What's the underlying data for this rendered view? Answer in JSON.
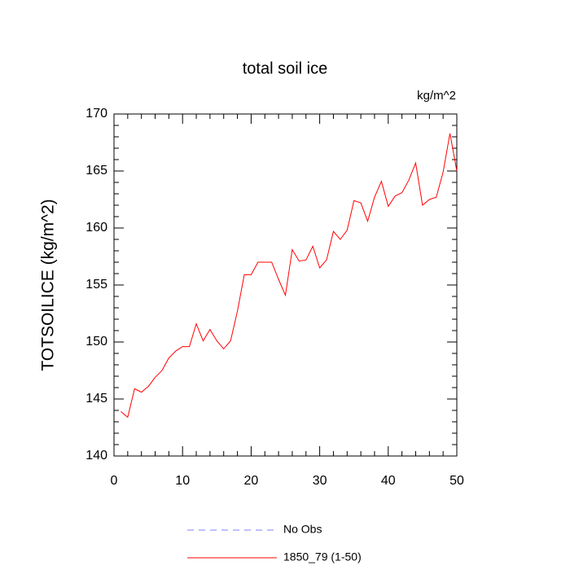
{
  "chart_data": {
    "type": "line",
    "title": "total soil ice",
    "units": "kg/m^2",
    "y_label": "TOTSOILICE  (kg/m^2)",
    "x": [
      1,
      2,
      3,
      4,
      5,
      6,
      7,
      8,
      9,
      10,
      11,
      12,
      13,
      14,
      15,
      16,
      17,
      18,
      19,
      20,
      21,
      22,
      23,
      24,
      25,
      26,
      27,
      28,
      29,
      30,
      31,
      32,
      33,
      34,
      35,
      36,
      37,
      38,
      39,
      40,
      41,
      42,
      43,
      44,
      45,
      46,
      47,
      48,
      49,
      50
    ],
    "series": [
      {
        "name": "No Obs",
        "color": "#8080ff",
        "dashed": true,
        "values": [
          null,
          null,
          null,
          null,
          null,
          null,
          null,
          null,
          null,
          null,
          null,
          null,
          null,
          null,
          null,
          null,
          null,
          null,
          null,
          null,
          null,
          null,
          null,
          null,
          null,
          null,
          null,
          null,
          null,
          null,
          null,
          null,
          null,
          null,
          null,
          null,
          null,
          null,
          null,
          null,
          null,
          null,
          null,
          null,
          null,
          null,
          null,
          null,
          null,
          null
        ]
      },
      {
        "name": "1850_79 (1-50)",
        "color": "#ff0000",
        "dashed": false,
        "values": [
          143.9,
          143.4,
          145.9,
          145.6,
          146.1,
          146.9,
          147.5,
          148.6,
          149.2,
          149.6,
          149.6,
          151.6,
          150.1,
          151.1,
          150.1,
          149.4,
          150.1,
          152.7,
          155.9,
          155.9,
          157.0,
          157.0,
          157.0,
          155.5,
          154.1,
          158.1,
          157.1,
          157.2,
          158.4,
          156.5,
          157.2,
          159.7,
          159.0,
          159.8,
          162.4,
          162.2,
          160.6,
          162.7,
          164.1,
          161.9,
          162.8,
          163.1,
          164.2,
          165.7,
          162.0,
          162.5,
          162.7,
          164.9,
          168.3,
          165.0
        ]
      }
    ],
    "xlim": [
      0,
      50
    ],
    "xticks": [
      0,
      10,
      20,
      30,
      40,
      50
    ],
    "ylim": [
      140,
      170
    ],
    "yticks": [
      140,
      145,
      150,
      155,
      160,
      165,
      170
    ]
  }
}
